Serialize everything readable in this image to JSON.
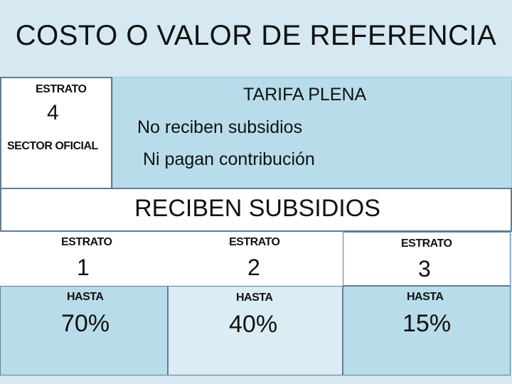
{
  "title": "COSTO O VALOR DE REFERENCIA",
  "estrato4": {
    "label": "ESTRATO",
    "number": "4",
    "sector": "SECTOR OFICIAL"
  },
  "tarifa": {
    "heading": "TARIFA PLENA",
    "line1": "No reciben subsidios",
    "line2": "Ni pagan contribución"
  },
  "reciben": "RECIBEN SUBSIDIOS",
  "strata": [
    {
      "label": "ESTRATO",
      "number": "1",
      "hasta": "HASTA",
      "percent": "70%"
    },
    {
      "label": "ESTRATO",
      "number": "2",
      "hasta": "HASTA",
      "percent": "40%"
    },
    {
      "label": "ESTRATO",
      "number": "3",
      "hasta": "HASTA",
      "percent": "15%"
    }
  ],
  "colors": {
    "background": "#d6e9f2",
    "cell_blue": "#b8dcea",
    "cell_light": "#daedf5",
    "border": "#5f7d95"
  }
}
